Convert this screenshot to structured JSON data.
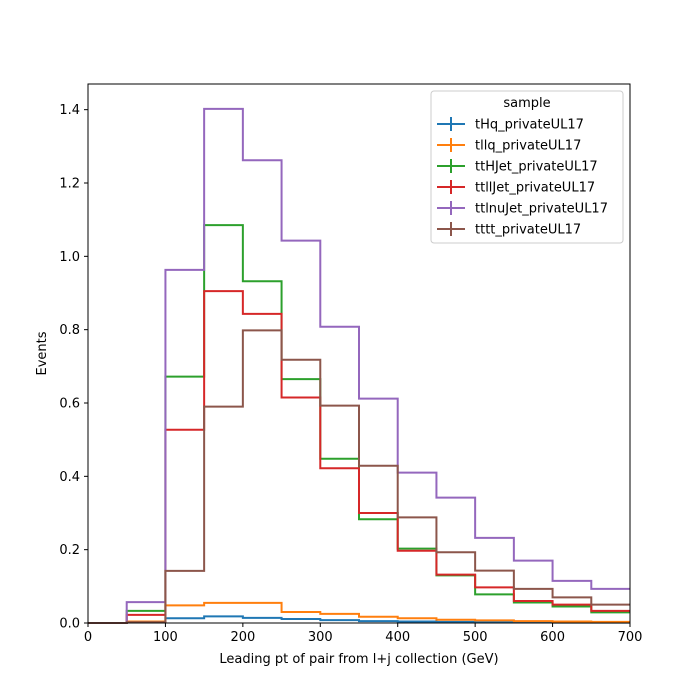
{
  "chart_data": {
    "type": "histogram-step",
    "title": "",
    "xlabel": "Leading pt of pair from l+j collection (GeV)",
    "ylabel": "Events",
    "xlim": [
      0,
      700
    ],
    "ylim": [
      0,
      1.47
    ],
    "xticks": [
      0,
      100,
      200,
      300,
      400,
      500,
      600,
      700
    ],
    "xtick_labels": [
      "0",
      "100",
      "200",
      "300",
      "400",
      "500",
      "600",
      "700"
    ],
    "yticks": [
      0.0,
      0.2,
      0.4,
      0.6,
      0.8,
      1.0,
      1.2,
      1.4
    ],
    "ytick_labels": [
      "0.0",
      "0.2",
      "0.4",
      "0.6",
      "0.8",
      "1.0",
      "1.2",
      "1.4"
    ],
    "grid": false,
    "legend": {
      "title": "sample",
      "position": "top-right"
    },
    "bin_edges": [
      0,
      50,
      100,
      150,
      200,
      250,
      300,
      350,
      400,
      450,
      500,
      550,
      600,
      650,
      700
    ],
    "series": [
      {
        "name": "tHq_privateUL17",
        "color": "#1f77b4",
        "values": [
          0.0,
          0.002,
          0.013,
          0.018,
          0.014,
          0.011,
          0.008,
          0.005,
          0.004,
          0.003,
          0.002,
          0.002,
          0.001,
          0.001
        ]
      },
      {
        "name": "tllq_privateUL17",
        "color": "#ff7f0e",
        "values": [
          0.0,
          0.004,
          0.048,
          0.055,
          0.055,
          0.03,
          0.025,
          0.017,
          0.013,
          0.009,
          0.007,
          0.005,
          0.004,
          0.003
        ]
      },
      {
        "name": "ttHJet_privateUL17",
        "color": "#2ca02c",
        "values": [
          0.0,
          0.033,
          0.672,
          1.085,
          0.932,
          0.665,
          0.448,
          0.283,
          0.203,
          0.13,
          0.078,
          0.056,
          0.045,
          0.029
        ]
      },
      {
        "name": "ttllJet_privateUL17",
        "color": "#d62728",
        "values": [
          0.0,
          0.022,
          0.527,
          0.905,
          0.843,
          0.615,
          0.422,
          0.3,
          0.197,
          0.132,
          0.097,
          0.06,
          0.05,
          0.033
        ]
      },
      {
        "name": "ttlnuJet_privateUL17",
        "color": "#9467bd",
        "values": [
          0.0,
          0.057,
          0.963,
          1.402,
          1.262,
          1.043,
          0.808,
          0.612,
          0.41,
          0.342,
          0.232,
          0.17,
          0.115,
          0.093
        ]
      },
      {
        "name": "tttt_privateUL17",
        "color": "#8c564b",
        "values": [
          0.0,
          0.002,
          0.142,
          0.59,
          0.798,
          0.718,
          0.593,
          0.429,
          0.288,
          0.193,
          0.143,
          0.093,
          0.07,
          0.05
        ]
      }
    ]
  }
}
